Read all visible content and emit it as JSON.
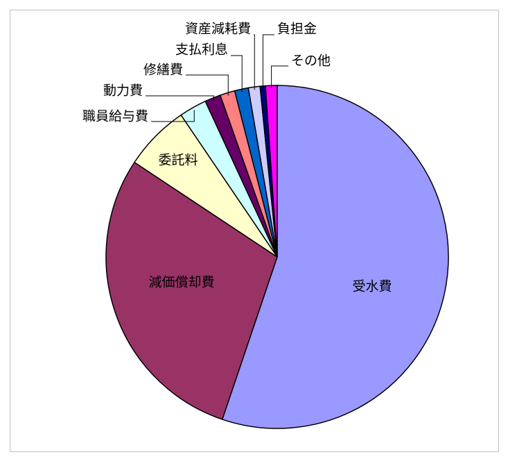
{
  "chart_data": {
    "type": "pie",
    "categories": [
      "受水費",
      "減価償却費",
      "委託料",
      "職員給与費",
      "動力費",
      "修繕費",
      "支払利息",
      "資産減耗費",
      "負担金",
      "その他"
    ],
    "values": [
      55.2,
      29.1,
      6.2,
      2.6,
      1.5,
      1.4,
      1.3,
      1.1,
      0.5,
      1.1
    ],
    "colors": [
      "#9999ff",
      "#993366",
      "#ffffcc",
      "#ccffff",
      "#660066",
      "#ff8080",
      "#0066cc",
      "#ccccff",
      "#000080",
      "#ff00ff"
    ]
  }
}
